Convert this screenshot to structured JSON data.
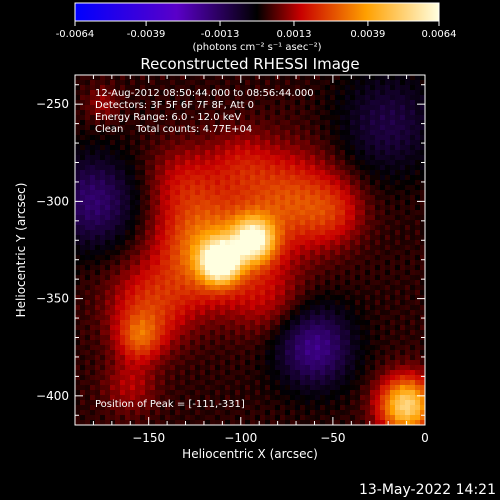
{
  "colorbar": {
    "tick_labels": [
      "-0.0064",
      "-0.0039",
      "-0.0013",
      "0.0013",
      "0.0039",
      "0.0064"
    ],
    "tick_values": [
      -0.0064,
      -0.0039,
      -0.0013,
      0.0013,
      0.0039,
      0.0064
    ],
    "range": [
      -0.0064,
      0.0064
    ],
    "units": "(photons cm⁻² s⁻¹ asec⁻²)",
    "colormap": [
      "#0000ff",
      "#5a00c8",
      "#000000",
      "#c80000",
      "#ffa000",
      "#ffffe0"
    ]
  },
  "annotations": {
    "time_range": "12-Aug-2012 08:50:44.000 to 08:56:44.000",
    "detectors": "Detectors: 3F 5F 6F 7F 8F, Att 0",
    "energy": "Energy Range: 6.0 - 12.0 keV",
    "clean": "Clean    Total counts: 4.77E+04",
    "peak": "Position of Peak = [-111,-331]"
  },
  "footer": {
    "timestamp": "13-May-2022 14:21"
  },
  "chart_data": {
    "type": "heatmap",
    "title": "Reconstructed RHESSI Image",
    "xlabel": "Heliocentric X (arcsec)",
    "ylabel": "Heliocentric Y (arcsec)",
    "xlim": [
      -190,
      0
    ],
    "ylim": [
      -415,
      -235
    ],
    "x_ticks": [
      -150,
      -100,
      -50,
      0
    ],
    "x_tick_labels": [
      "−150",
      "−100",
      "−50",
      "0"
    ],
    "y_ticks": [
      -400,
      -350,
      -300,
      -250
    ],
    "y_tick_labels": [
      "−400",
      "−350",
      "−300",
      "−250"
    ],
    "peak": [
      -111,
      -331
    ],
    "sources": [
      {
        "x": -111,
        "y": -331,
        "amplitude": 0.0062,
        "sigma": 7
      },
      {
        "x": -93,
        "y": -320,
        "amplitude": 0.0052,
        "sigma": 8
      },
      {
        "x": -118,
        "y": -325,
        "amplitude": 0.0032,
        "sigma": 18
      },
      {
        "x": -75,
        "y": -300,
        "amplitude": 0.0022,
        "sigma": 18
      },
      {
        "x": -150,
        "y": -355,
        "amplitude": 0.0018,
        "sigma": 15
      },
      {
        "x": -155,
        "y": -370,
        "amplitude": 0.0018,
        "sigma": 8
      },
      {
        "x": -130,
        "y": -290,
        "amplitude": 0.0012,
        "sigma": 14
      },
      {
        "x": -50,
        "y": -305,
        "amplitude": 0.0013,
        "sigma": 12
      },
      {
        "x": -100,
        "y": -280,
        "amplitude": 0.001,
        "sigma": 12
      },
      {
        "x": -85,
        "y": -350,
        "amplitude": 0.001,
        "sigma": 14
      },
      {
        "x": -10,
        "y": -405,
        "amplitude": 0.005,
        "sigma": 10
      },
      {
        "x": -160,
        "y": -395,
        "amplitude": 0.001,
        "sigma": 10
      },
      {
        "x": -175,
        "y": -250,
        "amplitude": 0.0009,
        "sigma": 6
      },
      {
        "x": -60,
        "y": -375,
        "amplitude": -0.0022,
        "sigma": 14
      },
      {
        "x": -180,
        "y": -300,
        "amplitude": -0.0018,
        "sigma": 16
      },
      {
        "x": -20,
        "y": -260,
        "amplitude": -0.0012,
        "sigma": 18
      }
    ]
  }
}
